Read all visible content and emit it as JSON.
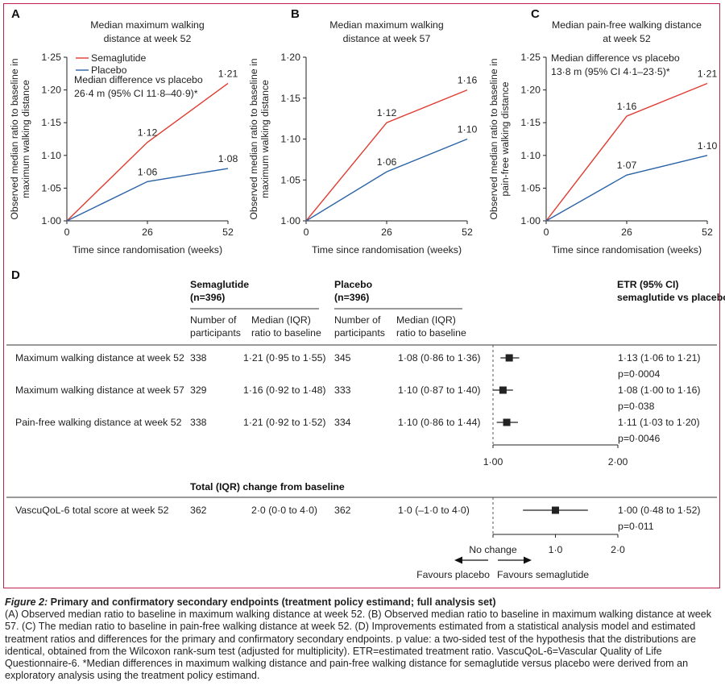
{
  "chart_data": [
    {
      "type": "line",
      "panel": "A",
      "title": [
        "Median maximum walking",
        "distance at week 52"
      ],
      "xlabel": "Time since randomisation (weeks)",
      "ylabel": [
        "Observed median ratio to baseline in",
        "maximum walking distance"
      ],
      "x": [
        0,
        26,
        52
      ],
      "xticks": [
        "0",
        "26",
        "52"
      ],
      "ylim": [
        1.0,
        1.25
      ],
      "yticks": [
        1.0,
        1.05,
        1.1,
        1.15,
        1.2,
        1.25
      ],
      "ytick_labels": [
        "1·00",
        "1·05",
        "1·10",
        "1·15",
        "1·20",
        "1·25"
      ],
      "series": [
        {
          "name": "Semaglutide",
          "color": "#e03c31",
          "values": [
            1.0,
            1.12,
            1.21
          ],
          "labels": [
            "",
            "1·12",
            "1·21"
          ]
        },
        {
          "name": "Placebo",
          "color": "#2a63a6",
          "values": [
            1.0,
            1.06,
            1.08
          ],
          "labels": [
            "",
            "1·06",
            "1·08"
          ]
        }
      ],
      "legend": [
        "Semaglutide",
        "Placebo"
      ],
      "annotation": [
        "Median difference vs placebo",
        "26·4 m (95% CI 11·8–40·9)*"
      ]
    },
    {
      "type": "line",
      "panel": "B",
      "title": [
        "Median maximum walking",
        "distance at week 57"
      ],
      "xlabel": "Time since randomisation (weeks)",
      "ylabel": [
        "Observed median ratio to baseline in",
        "maximum walking distance"
      ],
      "x": [
        0,
        26,
        52
      ],
      "xticks": [
        "0",
        "26",
        "52"
      ],
      "ylim": [
        1.0,
        1.2
      ],
      "yticks": [
        1.0,
        1.05,
        1.1,
        1.15,
        1.2
      ],
      "ytick_labels": [
        "1·00",
        "1·05",
        "1·10",
        "1·15",
        "1·20"
      ],
      "series": [
        {
          "name": "Semaglutide",
          "color": "#e03c31",
          "values": [
            1.0,
            1.12,
            1.16
          ],
          "labels": [
            "",
            "1·12",
            "1·16"
          ]
        },
        {
          "name": "Placebo",
          "color": "#2a63a6",
          "values": [
            1.0,
            1.06,
            1.1
          ],
          "labels": [
            "",
            "1·06",
            "1·10"
          ]
        }
      ]
    },
    {
      "type": "line",
      "panel": "C",
      "title": [
        "Median pain-free walking distance",
        "at week 52"
      ],
      "xlabel": "Time since randomisation (weeks)",
      "ylabel": [
        "Observed median ratio to baseline in",
        "pain-free walking distance"
      ],
      "x": [
        0,
        26,
        52
      ],
      "xticks": [
        "0",
        "26",
        "52"
      ],
      "ylim": [
        1.0,
        1.25
      ],
      "yticks": [
        1.0,
        1.05,
        1.1,
        1.15,
        1.2,
        1.25
      ],
      "ytick_labels": [
        "1·00",
        "1·05",
        "1·10",
        "1·15",
        "1·20",
        "1·25"
      ],
      "series": [
        {
          "name": "Semaglutide",
          "color": "#e03c31",
          "values": [
            1.0,
            1.16,
            1.21
          ],
          "labels": [
            "",
            "1·16",
            "1·21"
          ]
        },
        {
          "name": "Placebo",
          "color": "#2a63a6",
          "values": [
            1.0,
            1.07,
            1.1
          ],
          "labels": [
            "",
            "1·07",
            "1·10"
          ]
        }
      ],
      "annotation": [
        "Median difference vs placebo",
        "13·8 m (95% CI 4·1–23·5)*"
      ]
    },
    {
      "type": "table",
      "panel": "D",
      "headers": {
        "sema_group": [
          "Semaglutide",
          "(n=396)"
        ],
        "placebo_group": [
          "Placebo",
          "(n=396)"
        ],
        "sub_n": [
          "Number of",
          "participants"
        ],
        "sub_median": [
          "Median (IQR)",
          "ratio to baseline"
        ],
        "etr": [
          "ETR (95% CI)",
          "semaglutide vs placebo"
        ],
        "change_header": "Total (IQR) change from baseline"
      },
      "rows": [
        {
          "label": "Maximum walking distance at week 52",
          "sema_n": "338",
          "sema_median": "1·21 (0·95 to 1·55)",
          "plac_n": "345",
          "plac_median": "1·08 (0·86 to 1·36)",
          "etr": "1·13 (1·06 to 1·21)",
          "p": "p=0·0004",
          "est": 1.13,
          "lo": 1.06,
          "hi": 1.21
        },
        {
          "label": "Maximum walking distance at week 57",
          "sema_n": "329",
          "sema_median": "1·16 (0·92 to 1·48)",
          "plac_n": "333",
          "plac_median": "1·10 (0·87 to 1·40)",
          "etr": "1·08 (1·00 to 1·16)",
          "p": "p=0·038",
          "est": 1.08,
          "lo": 1.0,
          "hi": 1.16
        },
        {
          "label": "Pain-free walking distance at week 52",
          "sema_n": "338",
          "sema_median": "1·21 (0·92 to 1·52)",
          "plac_n": "334",
          "plac_median": "1·10 (0·86 to 1·44)",
          "etr": "1·11 (1·03 to 1·20)",
          "p": "p=0·0046",
          "est": 1.11,
          "lo": 1.03,
          "hi": 1.2
        }
      ],
      "ratio_axis": {
        "min": 1.0,
        "max": 2.0,
        "ticks": [
          1.0,
          2.0
        ],
        "tick_labels": [
          "1·00",
          "2·00"
        ]
      },
      "change_rows": [
        {
          "label": "VascuQoL-6 total score at week 52",
          "sema_n": "362",
          "sema_median": "2·0 (0·0 to 4·0)",
          "plac_n": "362",
          "plac_median": "1·0 (–1·0 to 4·0)",
          "etr": "1·00 (0·48 to 1·52)",
          "p": "p=0·011",
          "est": 1.0,
          "lo": 0.48,
          "hi": 1.52
        }
      ],
      "change_axis": {
        "min": 0.0,
        "max": 2.0,
        "ticks": [
          0.0,
          1.0,
          2.0
        ],
        "tick_labels": [
          "No change",
          "1·0",
          "2·0"
        ]
      },
      "favours_left": "Favours placebo",
      "favours_right": "Favours semaglutide"
    }
  ],
  "caption": {
    "title_italic": "Figure 2:",
    "title_bold": " Primary and confirmatory secondary endpoints (treatment policy estimand; full analysis set)",
    "text": "(A) Observed median ratio to baseline in maximum walking distance at week 52. (B) Observed median ratio to baseline in maximum walking distance at week 57. (C) The median ratio to baseline in pain-free walking distance at week 52. (D) Improvements estimated from a statistical analysis model and estimated treatment ratios and differences for the primary and confirmatory secondary endpoints. p value: a two-sided test of the hypothesis that the distributions are identical, obtained from the Wilcoxon rank-sum test (adjusted for multiplicity). ETR=estimated treatment ratio. VascuQoL-6=Vascular Quality of Life Questionnaire-6. *Median differences in maximum walking distance and pain-free walking distance for semaglutide versus placebo were derived from an exploratory analysis using the treatment policy estimand."
  }
}
